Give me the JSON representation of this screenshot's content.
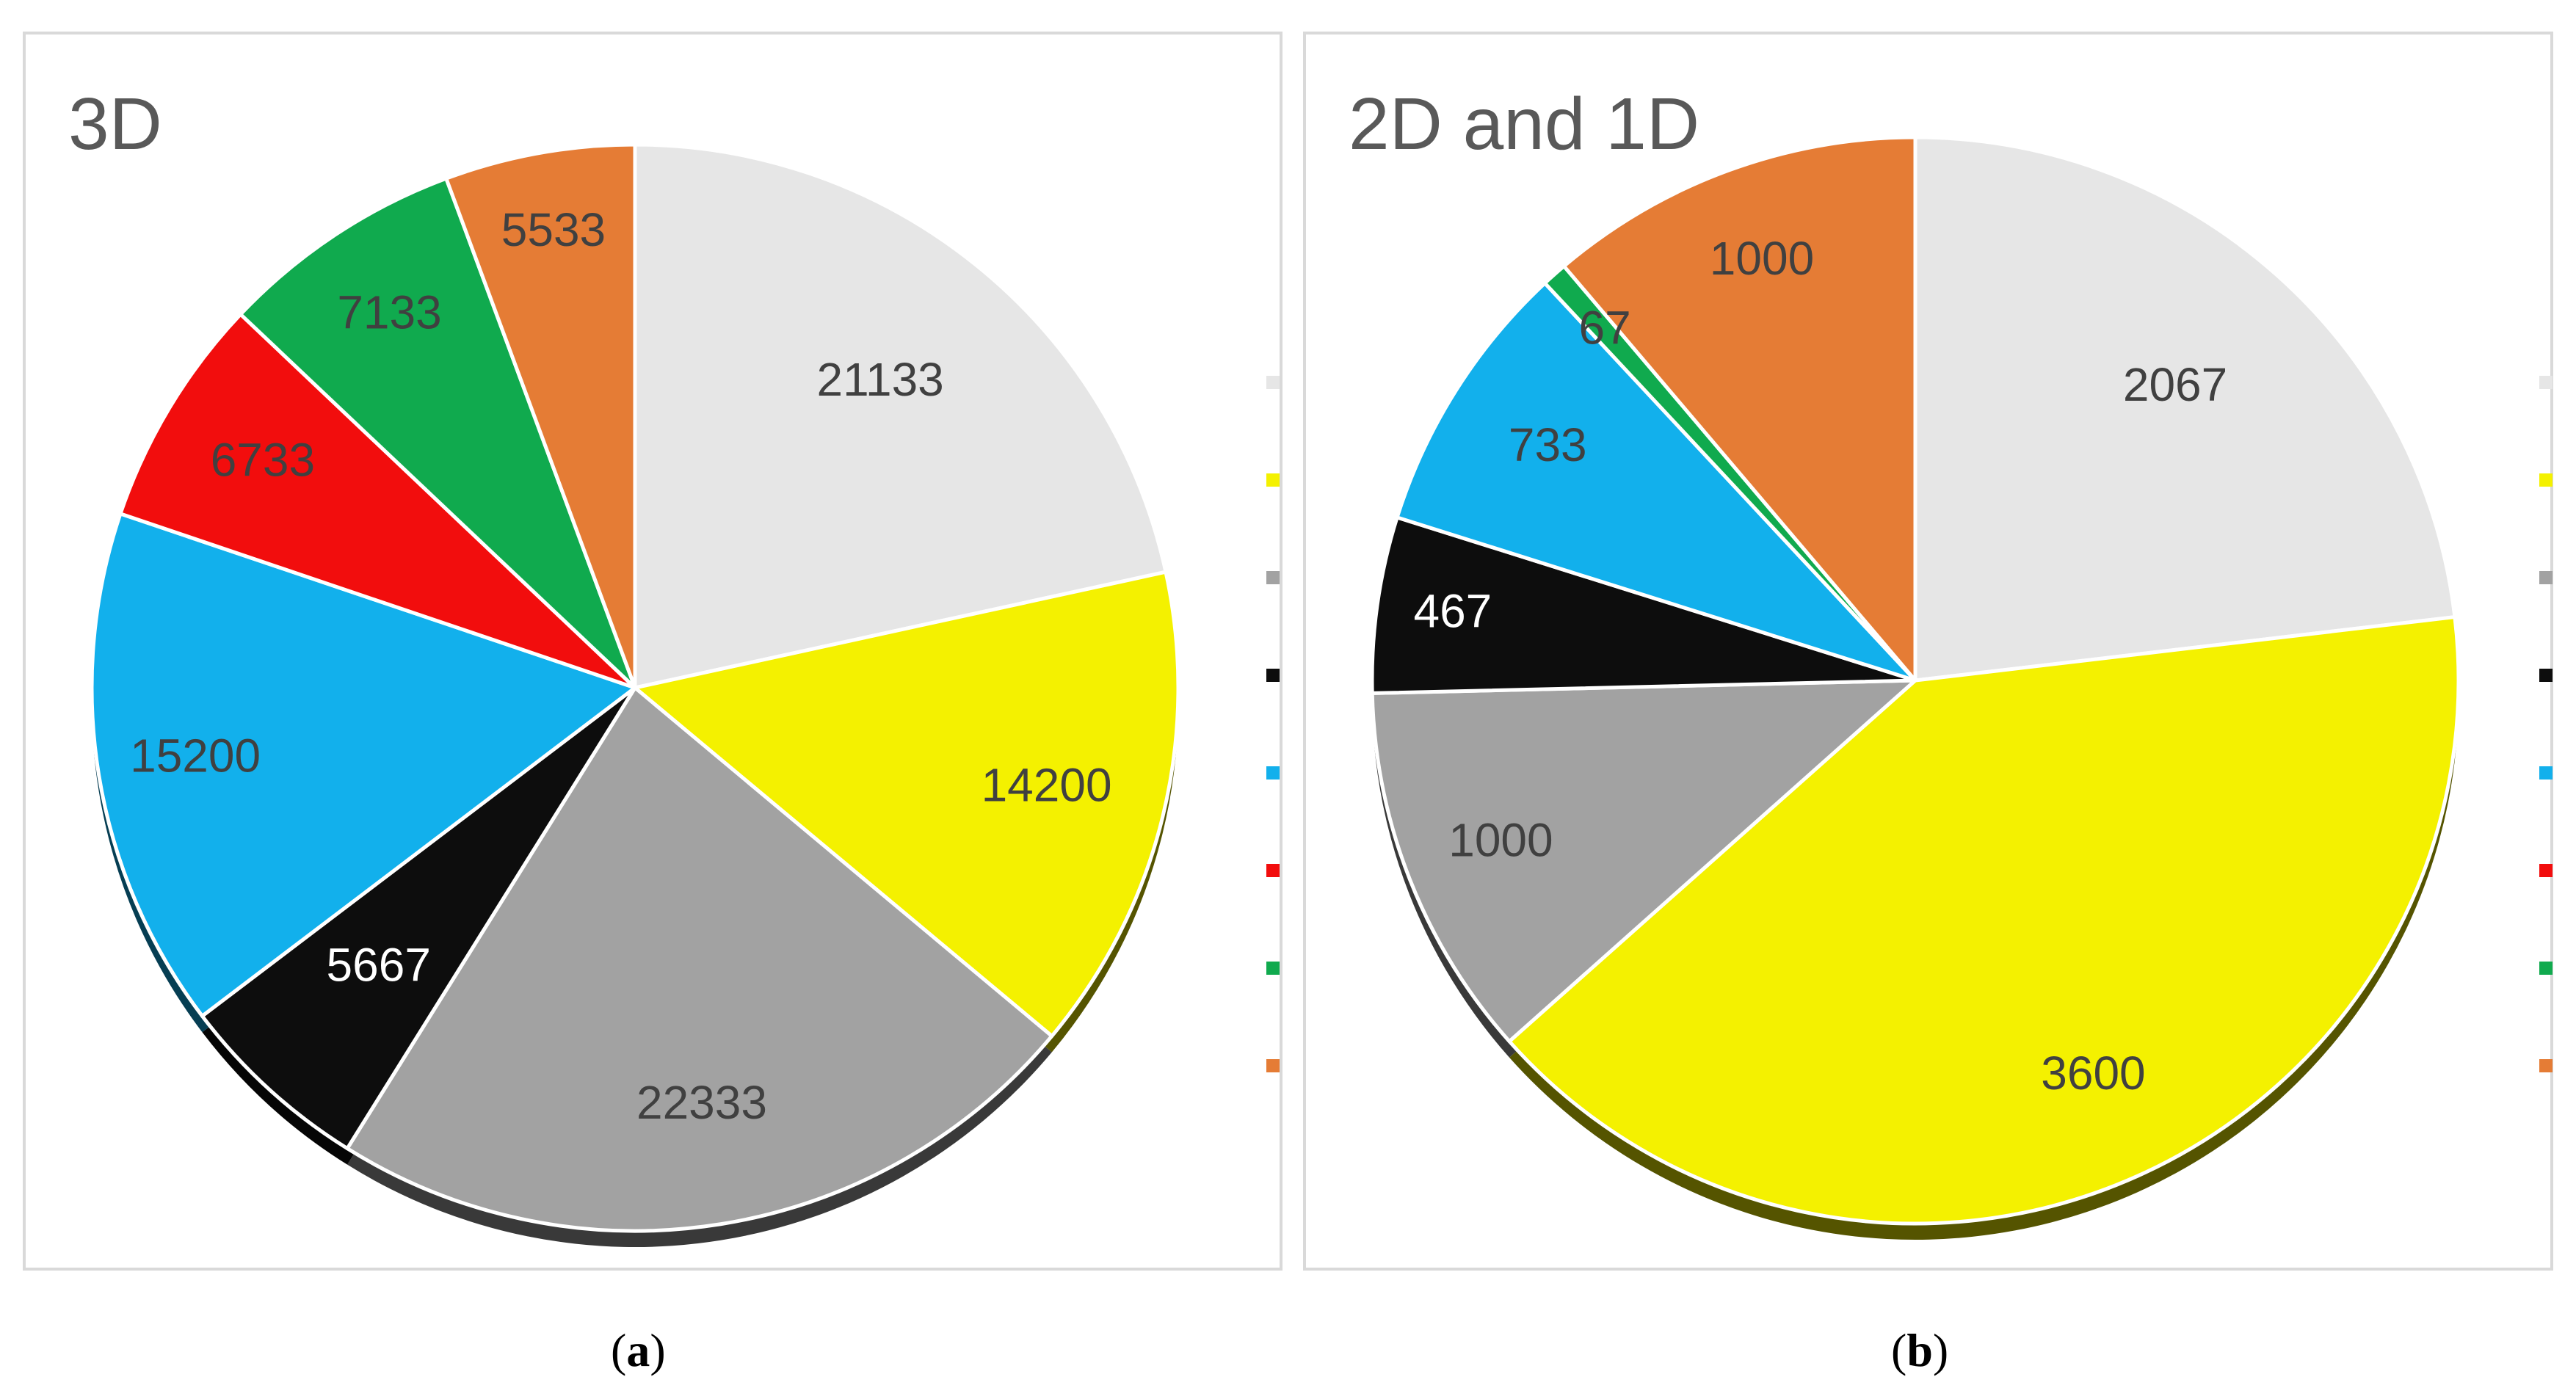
{
  "captions": {
    "a_open": "(",
    "a_letter": "a",
    "a_close": ")",
    "b_open": "(",
    "b_letter": "b",
    "b_close": ")"
  },
  "legend_colors": [
    "#e6e6e6",
    "#f4f100",
    "#a2a2a2",
    "#0d0d0d",
    "#12b0ec",
    "#f20d0d",
    "#10aa4e",
    "#e57c35"
  ],
  "chart_data": [
    {
      "type": "pie",
      "title": "3D",
      "start_angle_deg": 0,
      "direction": "clockwise",
      "slices": [
        {
          "value": 21133,
          "label": "21133",
          "color": "#e6e6e6",
          "label_color": "#404040"
        },
        {
          "value": 14200,
          "label": "14200",
          "color": "#f4f100",
          "label_color": "#404040"
        },
        {
          "value": 22333,
          "label": "22333",
          "color": "#a2a2a2",
          "label_color": "#404040"
        },
        {
          "value": 5667,
          "label": "5667",
          "color": "#0d0d0d",
          "label_color": "#ffffff"
        },
        {
          "value": 15200,
          "label": "15200",
          "color": "#12b0ec",
          "label_color": "#404040"
        },
        {
          "value": 6733,
          "label": "6733",
          "color": "#f20d0d",
          "label_color": "#404040"
        },
        {
          "value": 7133,
          "label": "7133",
          "color": "#10aa4e",
          "label_color": "#404040"
        },
        {
          "value": 5533,
          "label": "5533",
          "color": "#e57c35",
          "label_color": "#404040"
        }
      ],
      "legend_entries": [
        "",
        "",
        "",
        "",
        "",
        "",
        "",
        ""
      ]
    },
    {
      "type": "pie",
      "title": "2D and 1D",
      "start_angle_deg": 0,
      "direction": "clockwise",
      "slices": [
        {
          "value": 2067,
          "label": "2067",
          "color": "#e6e6e6",
          "label_color": "#404040"
        },
        {
          "value": 3600,
          "label": "3600",
          "color": "#f4f100",
          "label_color": "#404040"
        },
        {
          "value": 1000,
          "label": "1000",
          "color": "#a2a2a2",
          "label_color": "#404040"
        },
        {
          "value": 467,
          "label": "467",
          "color": "#0d0d0d",
          "label_color": "#ffffff"
        },
        {
          "value": 733,
          "label": "733",
          "color": "#12b0ec",
          "label_color": "#404040"
        },
        {
          "value": 0,
          "label": "",
          "color": "#f20d0d",
          "label_color": "#404040"
        },
        {
          "value": 67,
          "label": "67",
          "color": "#10aa4e",
          "label_color": "#404040"
        },
        {
          "value": 1000,
          "label": "1000",
          "color": "#e57c35",
          "label_color": "#404040"
        }
      ],
      "legend_entries": [
        "",
        "",
        "",
        "",
        "",
        "",
        "",
        ""
      ]
    }
  ]
}
